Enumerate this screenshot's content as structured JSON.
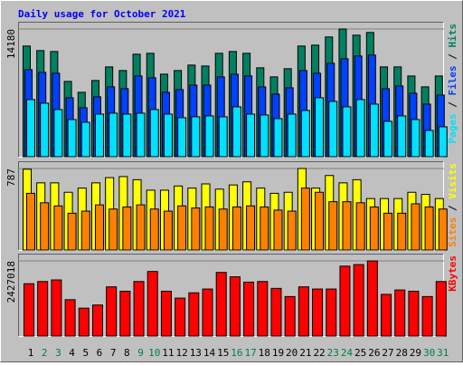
{
  "chart_data": [
    {
      "type": "bar",
      "title": "Daily usage for October 2021",
      "categories": [
        "1",
        "2",
        "3",
        "4",
        "5",
        "6",
        "7",
        "8",
        "9",
        "10",
        "11",
        "12",
        "13",
        "14",
        "15",
        "16",
        "17",
        "18",
        "19",
        "20",
        "21",
        "22",
        "23",
        "24",
        "25",
        "26",
        "27",
        "28",
        "29",
        "30",
        "31"
      ],
      "label_colors": [
        "#000000",
        "#008040",
        "#008040",
        "#000000",
        "#000000",
        "#000000",
        "#000000",
        "#000000",
        "#008040",
        "#008040",
        "#000000",
        "#000000",
        "#000000",
        "#000000",
        "#000000",
        "#008040",
        "#008040",
        "#000000",
        "#000000",
        "#000000",
        "#000000",
        "#000000",
        "#008040",
        "#008040",
        "#000000",
        "#000000",
        "#000000",
        "#000000",
        "#000000",
        "#008040",
        "#008040"
      ],
      "legend_separator": " / ",
      "ylim": [
        0,
        14180
      ],
      "yticks": [
        14180
      ],
      "series": [
        {
          "name": "Hits",
          "color": "#008060",
          "values": [
            12300,
            11800,
            11700,
            8400,
            7200,
            8500,
            10000,
            9600,
            11400,
            11500,
            9200,
            9600,
            10200,
            10100,
            11500,
            11700,
            11500,
            9900,
            8900,
            9800,
            12300,
            12400,
            13300,
            14180,
            13500,
            13800,
            10000,
            10000,
            9000,
            7800,
            9000
          ]
        },
        {
          "name": "Files",
          "color": "#0040ff",
          "values": [
            9700,
            9400,
            9300,
            6600,
            5500,
            6700,
            7800,
            7600,
            9000,
            8800,
            7200,
            7500,
            8000,
            8000,
            8900,
            9200,
            9000,
            7800,
            7000,
            7700,
            9600,
            9300,
            10400,
            10900,
            11200,
            11300,
            7600,
            7900,
            7100,
            5900,
            6900
          ]
        },
        {
          "name": "Pages",
          "color": "#00e0ff",
          "values": [
            6400,
            6000,
            5300,
            4200,
            3900,
            4800,
            4900,
            4800,
            4900,
            5300,
            4800,
            4400,
            4500,
            4600,
            4500,
            5600,
            4800,
            4700,
            4300,
            4800,
            5200,
            6600,
            6200,
            5600,
            6400,
            5900,
            4000,
            4600,
            4200,
            3000,
            3400
          ]
        }
      ]
    },
    {
      "type": "bar",
      "legend_separator": " / ",
      "ylim": [
        0,
        787
      ],
      "yticks": [
        787
      ],
      "series": [
        {
          "name": "Visits",
          "color": "#ffff00",
          "values": [
            780,
            650,
            650,
            560,
            600,
            650,
            700,
            710,
            680,
            580,
            580,
            620,
            600,
            640,
            590,
            630,
            660,
            600,
            550,
            560,
            787,
            600,
            720,
            650,
            680,
            500,
            500,
            500,
            560,
            540,
            500
          ]
        },
        {
          "name": "Sites",
          "color": "#ff8000",
          "values": [
            550,
            460,
            430,
            360,
            380,
            440,
            400,
            420,
            440,
            400,
            380,
            430,
            410,
            420,
            400,
            420,
            430,
            420,
            390,
            380,
            600,
            560,
            470,
            470,
            460,
            420,
            360,
            360,
            450,
            420,
            400
          ]
        }
      ]
    },
    {
      "type": "bar",
      "ylim": [
        0,
        2427018
      ],
      "yticks": [
        2427018
      ],
      "series": [
        {
          "name": "KBytes",
          "color": "#ff0000",
          "values": [
            1700000,
            1770000,
            1820000,
            1190000,
            920000,
            1020000,
            1600000,
            1460000,
            1770000,
            2090000,
            1460000,
            1240000,
            1410000,
            1530000,
            2060000,
            1920000,
            1750000,
            1770000,
            1550000,
            1290000,
            1600000,
            1530000,
            1530000,
            2260000,
            2310000,
            2427018,
            1360000,
            1500000,
            1460000,
            1290000,
            1770000
          ]
        }
      ]
    }
  ]
}
